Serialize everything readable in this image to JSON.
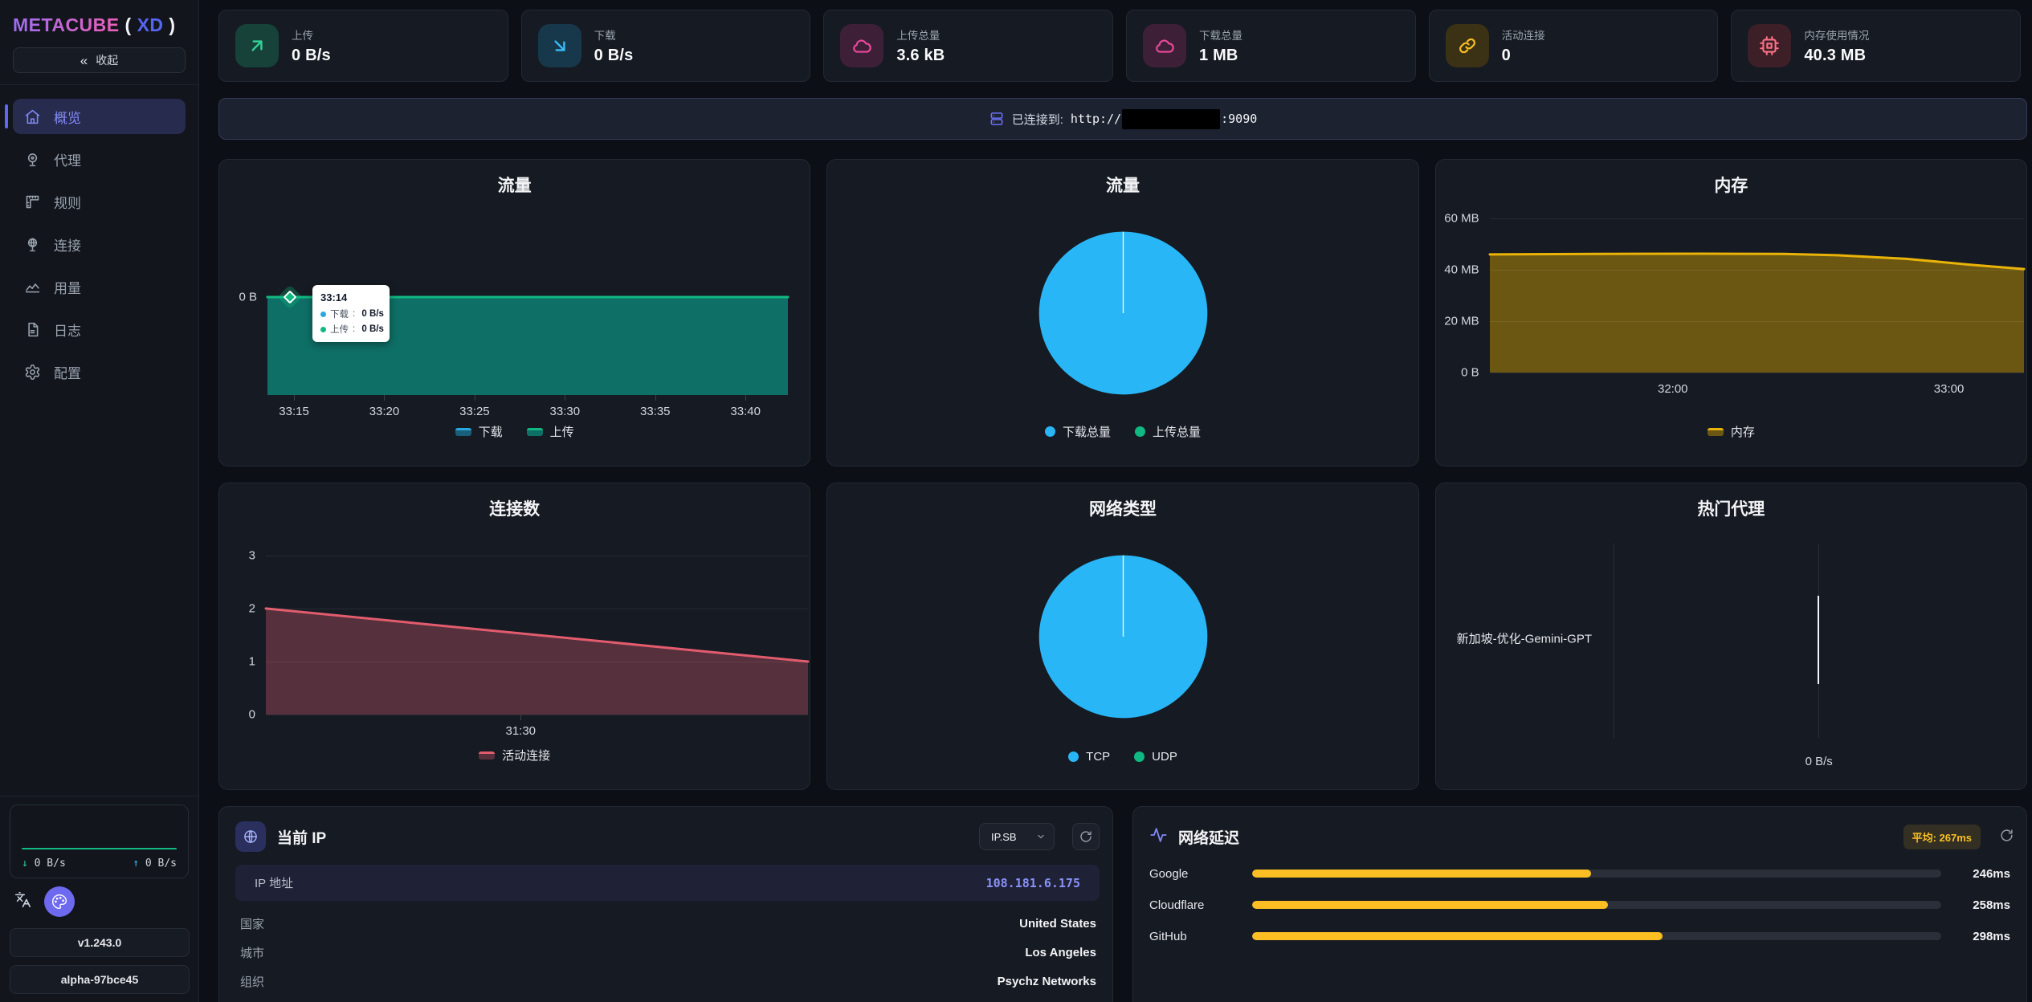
{
  "brand": {
    "name": "METACUBE",
    "open": "(",
    "tag": "XD",
    "close": ")"
  },
  "sidebar": {
    "collapse_label": "收起",
    "items": [
      {
        "label": "概览",
        "active": true
      },
      {
        "label": "代理",
        "active": false
      },
      {
        "label": "规则",
        "active": false
      },
      {
        "label": "连接",
        "active": false
      },
      {
        "label": "用量",
        "active": false
      },
      {
        "label": "日志",
        "active": false
      },
      {
        "label": "配置",
        "active": false
      }
    ],
    "footer": {
      "down_speed": "0 B/s",
      "up_speed": "0 B/s",
      "version": "v1.243.0",
      "build": "alpha-97bce45"
    }
  },
  "stats": [
    {
      "label": "上传",
      "value": "0 B/s",
      "icon": "arrow-up-right",
      "color": "#34d399",
      "bg": "#17423a"
    },
    {
      "label": "下载",
      "value": "0 B/s",
      "icon": "arrow-down-right",
      "color": "#38bdf8",
      "bg": "#16384a"
    },
    {
      "label": "上传总量",
      "value": "3.6 kB",
      "icon": "cloud",
      "color": "#ec4899",
      "bg": "#3d2038"
    },
    {
      "label": "下载总量",
      "value": "1 MB",
      "icon": "cloud",
      "color": "#ec4899",
      "bg": "#3d2038"
    },
    {
      "label": "活动连接",
      "value": "0",
      "icon": "link",
      "color": "#fbbf24",
      "bg": "#3b3115"
    },
    {
      "label": "内存使用情况",
      "value": "40.3 MB",
      "icon": "cpu",
      "color": "#fb7185",
      "bg": "#3d1f27"
    }
  ],
  "banner": {
    "label": "已连接到:",
    "url_prefix": "http://",
    "host_redacted": true,
    "url_suffix": ":9090"
  },
  "charts": {
    "traffic": {
      "title": "流量",
      "chart_data": {
        "type": "area",
        "ylim": [
          -1.1,
          1
        ],
        "series": [
          {
            "name": "下载",
            "color": "#29a7e3",
            "fill": "#1a5f7a",
            "points": [
              {
                "x": 0,
                "y": 0
              },
              {
                "x": 1,
                "y": 0
              }
            ]
          },
          {
            "name": "上传",
            "color": "#10b981",
            "fill": "#0e6f66",
            "points": [
              {
                "x": 0,
                "y": 0
              },
              {
                "x": 1,
                "y": 0
              }
            ]
          }
        ],
        "y_ticks": [
          {
            "label": "0 B",
            "value": 0
          }
        ],
        "x_ticks": [
          {
            "label": "33:15",
            "pos": 0.051
          },
          {
            "label": "33:20",
            "pos": 0.2245
          },
          {
            "label": "33:25",
            "pos": 0.398
          },
          {
            "label": "33:30",
            "pos": 0.5715
          },
          {
            "label": "33:35",
            "pos": 0.745
          },
          {
            "label": "33:40",
            "pos": 0.9185
          }
        ],
        "grid": false,
        "tick_marks": true
      },
      "tooltip": {
        "time": "33:14",
        "rows": [
          {
            "name": "下载",
            "value": "0 B/s",
            "color": "#29a7e3"
          },
          {
            "name": "上传",
            "value": "0 B/s",
            "color": "#10b981"
          }
        ]
      }
    },
    "traffic_pie": {
      "title": "流量",
      "chart_data": {
        "type": "pie",
        "slices": [
          {
            "label": "下载总量",
            "value": "1 MB",
            "share": 0.997,
            "color": "#29b6f6"
          },
          {
            "label": "上传总量",
            "value": "3.6 kB",
            "share": 0.003,
            "color": "#10b981"
          }
        ]
      }
    },
    "memory": {
      "title": "内存",
      "chart_data": {
        "type": "area",
        "ylim": [
          0,
          66.3
        ],
        "series": [
          {
            "name": "内存",
            "color": "#eab308",
            "fill": "#6b5712",
            "points": [
              {
                "x": 0,
                "y": 46
              },
              {
                "x": 0.2,
                "y": 46.2
              },
              {
                "x": 0.4,
                "y": 46.3
              },
              {
                "x": 0.55,
                "y": 46.2
              },
              {
                "x": 0.65,
                "y": 45.7
              },
              {
                "x": 0.78,
                "y": 44.3
              },
              {
                "x": 0.9,
                "y": 42
              },
              {
                "x": 1,
                "y": 40.3
              }
            ]
          }
        ],
        "y_ticks": [
          {
            "label": "60 MB",
            "value": 60
          },
          {
            "label": "40 MB",
            "value": 40
          },
          {
            "label": "20 MB",
            "value": 20
          },
          {
            "label": "0 B",
            "value": 0
          }
        ],
        "x_ticks": [
          {
            "label": "32:00",
            "pos": 0.343
          },
          {
            "label": "33:00",
            "pos": 0.86
          }
        ],
        "grid": true,
        "tick_marks": false
      }
    },
    "connections": {
      "title": "连接数",
      "chart_data": {
        "type": "area",
        "ylim": [
          0,
          3.3
        ],
        "series": [
          {
            "name": "活动连接",
            "color": "#e25c6e",
            "fill": "#56303c",
            "points": [
              {
                "x": 0,
                "y": 2
              },
              {
                "x": 1,
                "y": 1
              }
            ]
          }
        ],
        "y_ticks": [
          {
            "label": "3",
            "value": 3
          },
          {
            "label": "2",
            "value": 2
          },
          {
            "label": "1",
            "value": 1
          },
          {
            "label": "0",
            "value": 0
          }
        ],
        "x_ticks": [
          {
            "label": "31:30",
            "pos": 0.47
          }
        ],
        "grid": true,
        "tick_marks": true
      }
    },
    "network_type": {
      "title": "网络类型",
      "chart_data": {
        "type": "pie",
        "slices": [
          {
            "label": "TCP",
            "share": 1,
            "color": "#29b6f6"
          },
          {
            "label": "UDP",
            "share": 0,
            "color": "#10b981"
          }
        ]
      }
    },
    "top_proxies": {
      "title": "热门代理",
      "chart_data": {
        "type": "hbar",
        "categories": [
          "新加坡-优化-Gemini-GPT"
        ],
        "values": [
          0
        ],
        "value_label": "0 B/s",
        "unit": "B/s"
      }
    }
  },
  "ip_panel": {
    "title": "当前 IP",
    "provider": "IP.SB",
    "ip_label": "IP 地址",
    "ip": "108.181.6.175",
    "rows": [
      {
        "label": "国家",
        "value": "United States"
      },
      {
        "label": "城市",
        "value": "Los Angeles"
      },
      {
        "label": "组织",
        "value": "Psychz Networks"
      }
    ]
  },
  "latency_panel": {
    "title": "网络延迟",
    "average_display": "平均: 267ms",
    "scale_max_ms": 500,
    "bar_color": "#fbbf24",
    "rows": [
      {
        "label": "Google",
        "display": "246ms",
        "ms": 246,
        "pct": 49.2
      },
      {
        "label": "Cloudflare",
        "display": "258ms",
        "ms": 258,
        "pct": 51.6
      },
      {
        "label": "GitHub",
        "display": "298ms",
        "ms": 298,
        "pct": 59.6
      }
    ]
  }
}
